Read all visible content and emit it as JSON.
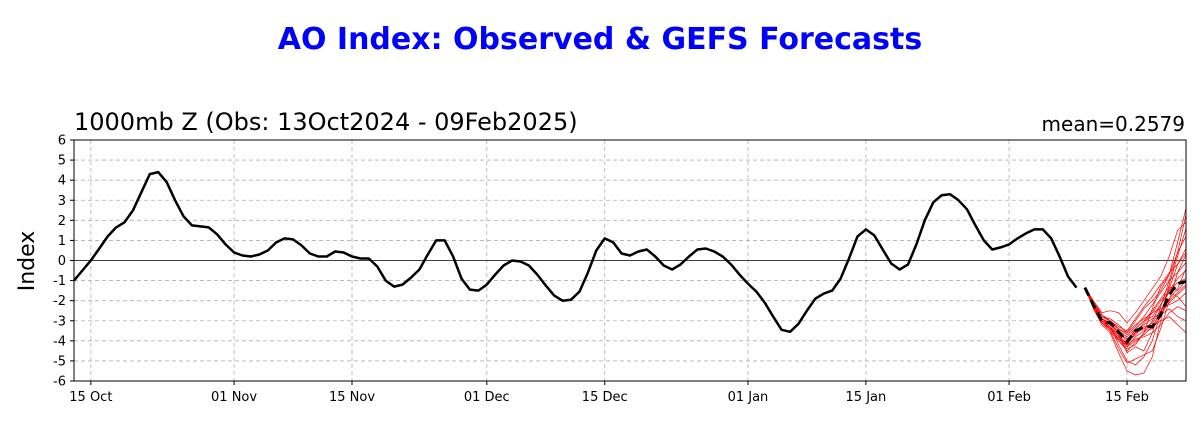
{
  "suptitle": "AO Index: Observed & GEFS Forecasts",
  "subtitle_left": "1000mb Z (Obs: 13Oct2024 - 09Feb2025)",
  "subtitle_right": "mean=0.2579",
  "chart_data": {
    "type": "line",
    "ylabel": "Index",
    "xlabel": "",
    "ylim": [
      -6,
      6
    ],
    "yticks": [
      6,
      5,
      4,
      3,
      2,
      1,
      0,
      -1,
      -2,
      -3,
      -4,
      -5,
      -6
    ],
    "grid": true,
    "xticks": [
      {
        "label": "15 Oct",
        "day": 2
      },
      {
        "label": "01 Nov",
        "day": 19
      },
      {
        "label": "15 Nov",
        "day": 33
      },
      {
        "label": "01 Dec",
        "day": 49
      },
      {
        "label": "15 Dec",
        "day": 63
      },
      {
        "label": "01 Jan",
        "day": 80
      },
      {
        "label": "15 Jan",
        "day": 94
      },
      {
        "label": "01 Feb",
        "day": 111
      },
      {
        "label": "15 Feb",
        "day": 125
      }
    ],
    "x_start_date": "2024-10-13",
    "xlim_days": [
      0,
      132
    ],
    "colors": {
      "observed": "#000000",
      "members": "#ff0000",
      "ensemble_mean": "#000000",
      "zero_line": "#000000",
      "grid": "#b0b0b0"
    },
    "observed": [
      -1.0,
      -0.5,
      0.0,
      0.6,
      1.2,
      1.65,
      1.9,
      2.5,
      3.4,
      4.3,
      4.4,
      3.9,
      3.0,
      2.2,
      1.75,
      1.7,
      1.65,
      1.3,
      0.8,
      0.4,
      0.25,
      0.2,
      0.3,
      0.5,
      0.9,
      1.1,
      1.05,
      0.75,
      0.35,
      0.2,
      0.2,
      0.45,
      0.4,
      0.2,
      0.1,
      0.1,
      -0.3,
      -1.0,
      -1.3,
      -1.2,
      -0.85,
      -0.45,
      0.3,
      1.0,
      1.0,
      0.2,
      -0.9,
      -1.45,
      -1.5,
      -1.2,
      -0.7,
      -0.25,
      0.0,
      -0.05,
      -0.25,
      -0.7,
      -1.25,
      -1.75,
      -2.0,
      -1.95,
      -1.55,
      -0.6,
      0.5,
      1.1,
      0.9,
      0.35,
      0.25,
      0.45,
      0.55,
      0.2,
      -0.25,
      -0.45,
      -0.2,
      0.2,
      0.55,
      0.6,
      0.45,
      0.2,
      -0.2,
      -0.7,
      -1.15,
      -1.55,
      -2.1,
      -2.8,
      -3.45,
      -3.55,
      -3.15,
      -2.5,
      -1.9,
      -1.65,
      -1.5,
      -0.9,
      0.1,
      1.2,
      1.55,
      1.25,
      0.55,
      -0.15,
      -0.45,
      -0.2,
      0.8,
      2.0,
      2.9,
      3.25,
      3.3,
      3.0,
      2.55,
      1.75,
      1.0,
      0.55,
      0.65,
      0.8,
      1.1,
      1.35,
      1.55,
      1.55,
      1.1,
      0.2,
      -0.8,
      -1.35
    ],
    "ensemble_mean": {
      "start_day": 120,
      "values": [
        -1.35,
        -2.2,
        -3.0,
        -3.1,
        -3.55,
        -4.05,
        -3.5,
        -3.3,
        -3.3,
        -2.7,
        -1.7,
        -1.15,
        -1.05
      ]
    },
    "members": [
      [
        -1.35,
        -2.0,
        -2.7,
        -3.0,
        -3.7,
        -4.6,
        -4.3,
        -4.5,
        -3.6,
        -2.3,
        -1.0,
        0.4,
        1.2
      ],
      [
        -1.35,
        -2.1,
        -2.9,
        -3.3,
        -4.2,
        -5.0,
        -5.2,
        -4.8,
        -4.0,
        -2.6,
        -1.4,
        -0.2,
        0.6
      ],
      [
        -1.35,
        -2.3,
        -3.1,
        -3.5,
        -4.4,
        -5.1,
        -4.9,
        -4.7,
        -4.5,
        -3.4,
        -2.0,
        -0.6,
        0.3
      ],
      [
        -1.35,
        -2.2,
        -3.0,
        -3.3,
        -4.0,
        -4.4,
        -4.2,
        -3.6,
        -2.4,
        -1.3,
        -0.7,
        0.4,
        2.3
      ],
      [
        -1.35,
        -2.4,
        -3.2,
        -3.6,
        -4.6,
        -5.5,
        -5.7,
        -5.6,
        -4.8,
        -3.0,
        -1.2,
        0.2,
        1.6
      ],
      [
        -1.35,
        -2.1,
        -2.8,
        -2.9,
        -3.2,
        -3.6,
        -3.0,
        -2.4,
        -2.0,
        -1.5,
        -0.7,
        0.9,
        2.6
      ],
      [
        -1.35,
        -2.0,
        -2.6,
        -2.5,
        -2.6,
        -3.1,
        -2.6,
        -2.0,
        -1.4,
        -0.8,
        0.2,
        1.5,
        1.9
      ],
      [
        -1.35,
        -2.3,
        -3.0,
        -3.4,
        -3.9,
        -4.1,
        -3.4,
        -3.0,
        -2.8,
        -2.2,
        -1.5,
        -1.1,
        -0.9
      ],
      [
        -1.35,
        -2.2,
        -2.9,
        -3.2,
        -3.6,
        -3.9,
        -3.6,
        -3.4,
        -3.1,
        -2.5,
        -2.0,
        -1.6,
        -1.2
      ],
      [
        -1.35,
        -2.1,
        -2.8,
        -3.0,
        -3.4,
        -3.6,
        -3.2,
        -2.9,
        -2.6,
        -2.4,
        -2.2,
        -2.0,
        -1.6
      ],
      [
        -1.35,
        -2.2,
        -3.0,
        -3.3,
        -3.7,
        -4.2,
        -3.9,
        -3.8,
        -3.6,
        -3.2,
        -2.6,
        -2.3,
        -2.5
      ],
      [
        -1.35,
        -2.3,
        -3.1,
        -3.4,
        -3.9,
        -4.3,
        -4.0,
        -3.7,
        -3.3,
        -3.0,
        -2.8,
        -3.2,
        -3.6
      ],
      [
        -1.35,
        -2.2,
        -2.9,
        -3.2,
        -3.5,
        -3.8,
        -3.4,
        -3.0,
        -2.5,
        -1.9,
        -1.3,
        -1.5,
        -1.0
      ],
      [
        -1.35,
        -2.1,
        -2.8,
        -3.0,
        -3.3,
        -3.5,
        -2.9,
        -2.3,
        -1.8,
        -1.2,
        -0.6,
        -0.2,
        0.4
      ],
      [
        -1.35,
        -2.2,
        -3.0,
        -3.3,
        -3.8,
        -4.3,
        -3.8,
        -3.5,
        -3.4,
        -2.8,
        -1.9,
        -1.4,
        -0.4
      ],
      [
        -1.35,
        -2.3,
        -3.1,
        -3.5,
        -4.0,
        -4.5,
        -4.1,
        -3.6,
        -3.0,
        -2.2,
        -1.6,
        -1.8,
        -2.3
      ],
      [
        -1.35,
        -2.2,
        -2.9,
        -3.1,
        -3.4,
        -3.7,
        -3.3,
        -2.8,
        -2.2,
        -1.6,
        -1.0,
        -0.6,
        -0.1
      ],
      [
        -1.35,
        -2.1,
        -2.9,
        -3.2,
        -3.6,
        -4.0,
        -3.5,
        -3.2,
        -2.9,
        -2.6,
        -2.1,
        -1.7,
        -1.3
      ],
      [
        -1.35,
        -2.3,
        -3.0,
        -3.3,
        -3.8,
        -4.1,
        -3.7,
        -3.3,
        -3.2,
        -2.7,
        -2.4,
        -2.8,
        -3.0
      ],
      [
        -1.35,
        -2.2,
        -3.0,
        -3.4,
        -3.9,
        -4.2,
        -3.6,
        -3.1,
        -2.6,
        -2.0,
        -1.5,
        -0.9,
        -0.5
      ]
    ]
  }
}
